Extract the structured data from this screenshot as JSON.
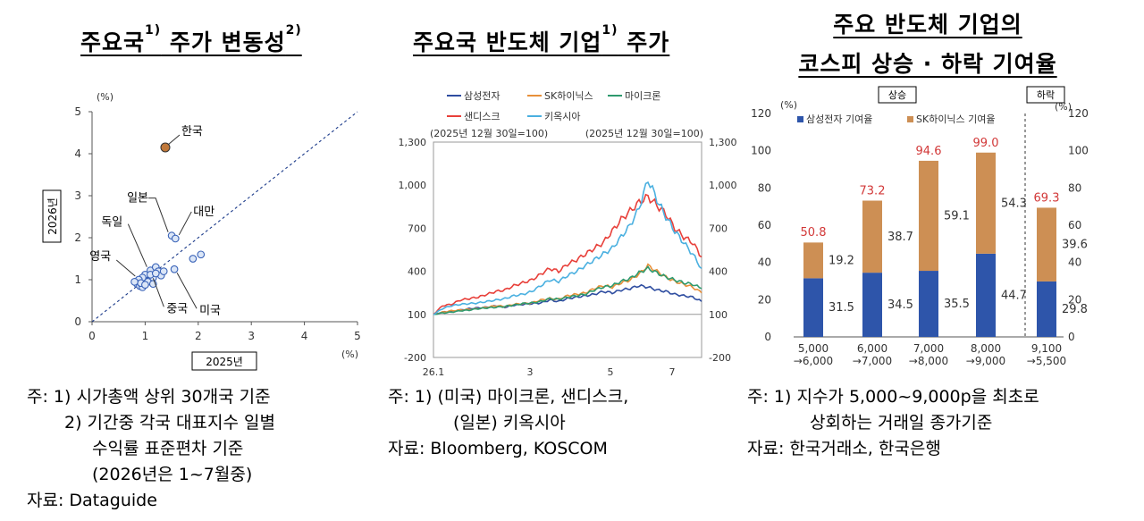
{
  "panel1": {
    "title": "주요국",
    "title_sup1": "1)",
    "title_mid": " 주가 변동성",
    "title_sup2": "2)",
    "unit_top": "(%)",
    "unit_right": "(%)",
    "ylabel": "2026년",
    "xlabel": "2025년",
    "notes": [
      "주: 1) 시가총액 상위 30개국 기준",
      "2) 기간중 각국 대표지수 일별",
      "수익률 표준편차 기준",
      "(2026년은 1~7월중)",
      "자료: Dataguide"
    ],
    "chart_data": {
      "type": "scatter",
      "xlim": [
        0,
        5
      ],
      "ylim": [
        0,
        5
      ],
      "xticks": [
        "0",
        "1",
        "2",
        "3",
        "4",
        "5"
      ],
      "yticks": [
        "0",
        "1",
        "2",
        "3",
        "4",
        "5"
      ],
      "reference_line": "45-degree dotted",
      "highlight": {
        "label": "한국",
        "x": 1.38,
        "y": 4.15,
        "color": "#c0783a"
      },
      "labels": [
        {
          "text": "일본",
          "x": 1.5,
          "y": 2.05
        },
        {
          "text": "대만",
          "x": 1.57,
          "y": 1.98
        },
        {
          "text": "독일",
          "x": 1.1,
          "y": 1.22
        },
        {
          "text": "영국",
          "x": 0.88,
          "y": 1.0
        },
        {
          "text": "중국",
          "x": 1.1,
          "y": 1.12
        },
        {
          "text": "미국",
          "x": 1.55,
          "y": 1.25
        }
      ],
      "points": [
        [
          1.5,
          2.05
        ],
        [
          1.57,
          1.98
        ],
        [
          1.9,
          1.5
        ],
        [
          2.05,
          1.6
        ],
        [
          1.55,
          1.25
        ],
        [
          1.1,
          1.22
        ],
        [
          1.2,
          1.3
        ],
        [
          1.25,
          1.2
        ],
        [
          1.3,
          1.1
        ],
        [
          1.15,
          1.05
        ],
        [
          1.0,
          1.12
        ],
        [
          0.95,
          1.05
        ],
        [
          0.88,
          1.0
        ],
        [
          0.85,
          0.9
        ],
        [
          0.9,
          0.85
        ],
        [
          0.95,
          0.82
        ],
        [
          1.05,
          0.95
        ],
        [
          0.92,
          0.92
        ],
        [
          1.1,
          1.12
        ],
        [
          1.2,
          1.15
        ],
        [
          0.8,
          0.95
        ],
        [
          1.0,
          0.88
        ],
        [
          1.35,
          1.2
        ],
        [
          1.15,
          0.9
        ]
      ]
    }
  },
  "panel2": {
    "title": "주요국 반도체 기업",
    "title_sup": "1)",
    "title_end": " 주가",
    "note_left": "(2025년 12월 30일=100)",
    "note_right": "(2025년 12월 30일=100)",
    "notes": [
      "주: 1) (미국) 마이크론, 샌디스크,",
      "(일본) 키옥시아",
      "자료: Bloomberg, KOSCOM"
    ],
    "chart_data": {
      "type": "line",
      "ylim": [
        -200,
        1300
      ],
      "yticks": [
        "-200",
        "100",
        "400",
        "700",
        "1,000",
        "1,300"
      ],
      "xticks": [
        "26.1",
        "3",
        "5",
        "7"
      ],
      "x": [
        0,
        1,
        2,
        3,
        4,
        5,
        6,
        7,
        8,
        9,
        10,
        11,
        12,
        13,
        14,
        15,
        16,
        17,
        18,
        19,
        20,
        21,
        22,
        23,
        24,
        25,
        26,
        27,
        28,
        29,
        30
      ],
      "series": [
        {
          "name": "삼성전자",
          "color": "#2e4da0",
          "values": [
            100,
            115,
            120,
            130,
            140,
            145,
            150,
            160,
            150,
            165,
            170,
            175,
            180,
            200,
            190,
            210,
            220,
            230,
            240,
            260,
            250,
            270,
            280,
            300,
            290,
            270,
            260,
            240,
            230,
            220,
            190
          ]
        },
        {
          "name": "SK하이닉스",
          "color": "#e8903a",
          "values": [
            100,
            115,
            125,
            130,
            135,
            140,
            150,
            160,
            155,
            170,
            175,
            180,
            200,
            210,
            205,
            230,
            240,
            250,
            280,
            300,
            290,
            320,
            340,
            380,
            440,
            400,
            360,
            330,
            310,
            290,
            250
          ]
        },
        {
          "name": "마이크론",
          "color": "#2e9a6e",
          "values": [
            100,
            110,
            115,
            125,
            130,
            140,
            145,
            150,
            155,
            165,
            175,
            180,
            190,
            210,
            205,
            220,
            230,
            240,
            270,
            290,
            300,
            330,
            350,
            390,
            420,
            390,
            360,
            340,
            320,
            310,
            280
          ]
        },
        {
          "name": "샌디스크",
          "color": "#e8403a",
          "values": [
            100,
            160,
            170,
            200,
            210,
            220,
            240,
            260,
            270,
            300,
            320,
            340,
            380,
            420,
            400,
            450,
            480,
            520,
            560,
            600,
            680,
            760,
            820,
            880,
            920,
            860,
            800,
            700,
            640,
            600,
            500
          ]
        },
        {
          "name": "키옥시아",
          "color": "#4ab0e0",
          "values": [
            100,
            140,
            160,
            170,
            175,
            180,
            190,
            200,
            210,
            230,
            240,
            260,
            300,
            340,
            330,
            370,
            400,
            440,
            480,
            520,
            560,
            640,
            720,
            840,
            1040,
            900,
            780,
            680,
            600,
            520,
            420
          ]
        }
      ]
    }
  },
  "panel3": {
    "title1": "주요 반도체 기업의",
    "title2": "코스피 상승 · 하락 기여율",
    "tag_up": "상승",
    "tag_down": "하락",
    "unit_left": "(%)",
    "unit_right": "(%)",
    "notes": [
      "주: 1) 지수가 5,000~9,000p을 최초로",
      "상회하는 거래일 종가기준",
      "자료: 한국거래소, 한국은행"
    ],
    "chart_data": {
      "type": "bar",
      "stacked": true,
      "ylim": [
        0,
        120
      ],
      "yticks": [
        "0",
        "20",
        "40",
        "60",
        "80",
        "100",
        "120"
      ],
      "categories": [
        [
          "5,000",
          "→6,000"
        ],
        [
          "6,000",
          "→7,000"
        ],
        [
          "7,000",
          "→8,000"
        ],
        [
          "8,000",
          "→9,000"
        ],
        [
          "9,100",
          "→5,500"
        ]
      ],
      "series": [
        {
          "name": "삼성전자 기여율",
          "color": "#2e55aa",
          "values": [
            31.5,
            34.5,
            35.5,
            44.7,
            29.8
          ]
        },
        {
          "name": "SK하이닉스 기여율",
          "color": "#cd8f54",
          "values": [
            19.2,
            38.7,
            59.1,
            54.3,
            39.6
          ]
        }
      ],
      "totals": [
        50.8,
        73.2,
        94.6,
        99.0,
        69.3
      ],
      "total_labels": [
        "50.8",
        "73.2",
        "94.6",
        "99.0",
        "69.3"
      ],
      "total_color": "#d23838"
    }
  }
}
